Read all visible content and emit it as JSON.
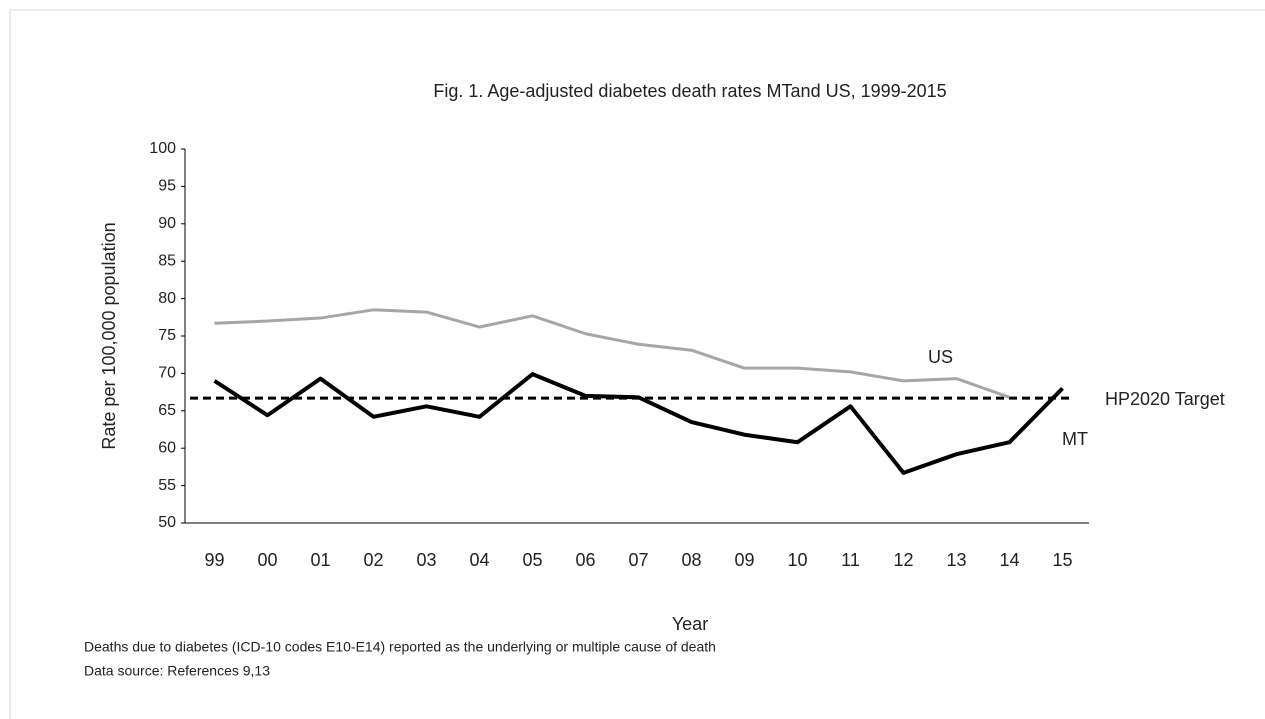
{
  "chart_data": {
    "type": "line",
    "title": "Fig. 1. Age-adjusted diabetes death rates MTand US, 1999-2015",
    "x_label": "Year",
    "y_label": "Rate per 100,000  population",
    "categories": [
      "99",
      "00",
      "01",
      "02",
      "03",
      "04",
      "05",
      "06",
      "07",
      "08",
      "09",
      "10",
      "11",
      "12",
      "13",
      "14",
      "15"
    ],
    "series": [
      {
        "name": "US",
        "color": "#a6a6a6",
        "values": [
          76.7,
          77.0,
          77.4,
          78.5,
          78.2,
          76.2,
          77.7,
          75.3,
          73.9,
          73.1,
          70.7,
          70.7,
          70.2,
          69.0,
          69.3,
          66.8,
          null
        ]
      },
      {
        "name": "MT",
        "color": "#000000",
        "values": [
          69.0,
          64.4,
          69.3,
          64.2,
          65.6,
          64.2,
          69.9,
          67.0,
          66.8,
          63.5,
          61.8,
          60.8,
          65.6,
          56.7,
          59.2,
          60.8,
          68.0
        ]
      }
    ],
    "target": {
      "name": "HP2020 Target",
      "value": 66.7,
      "color": "#000000"
    },
    "ylim": [
      50,
      100
    ],
    "yticks": [
      50,
      55,
      60,
      65,
      70,
      75,
      80,
      85,
      90,
      95,
      100
    ],
    "grid": false,
    "notes": [
      "Deaths due to diabetes (ICD-10 codes E10-E14) reported as the underlying or multiple cause of death",
      "Data source: References 9,13"
    ]
  }
}
